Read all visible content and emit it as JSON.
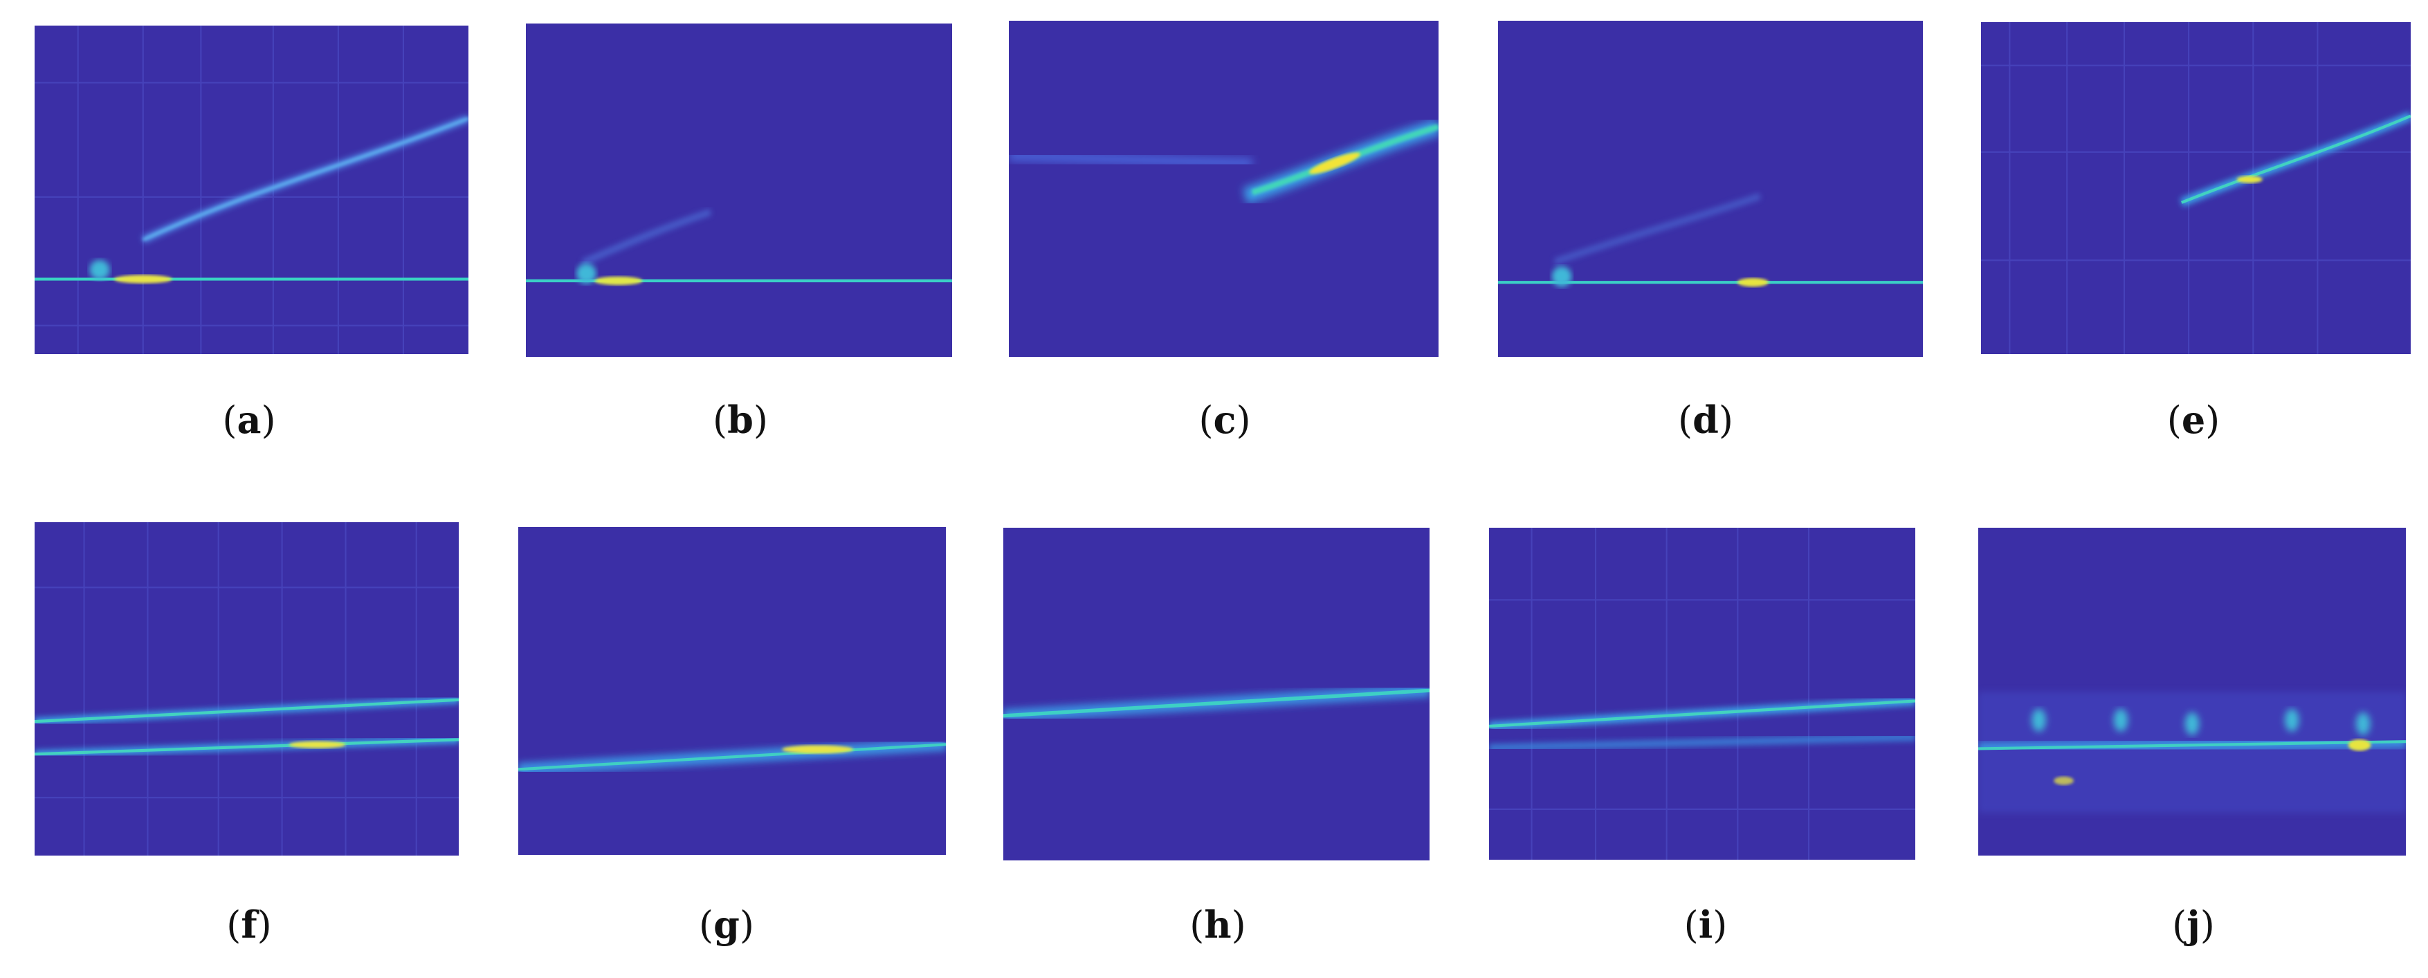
{
  "colors": {
    "background": "#3a2a9c",
    "low": "#4a4fd6",
    "mid": "#2aa7d8",
    "high": "#35d8b4",
    "peak": "#f4e23a"
  },
  "panels": [
    {
      "label": "a"
    },
    {
      "label": "b"
    },
    {
      "label": "c"
    },
    {
      "label": "d"
    },
    {
      "label": "e"
    },
    {
      "label": "f"
    },
    {
      "label": "g"
    },
    {
      "label": "h"
    },
    {
      "label": "i"
    },
    {
      "label": "j"
    }
  ]
}
